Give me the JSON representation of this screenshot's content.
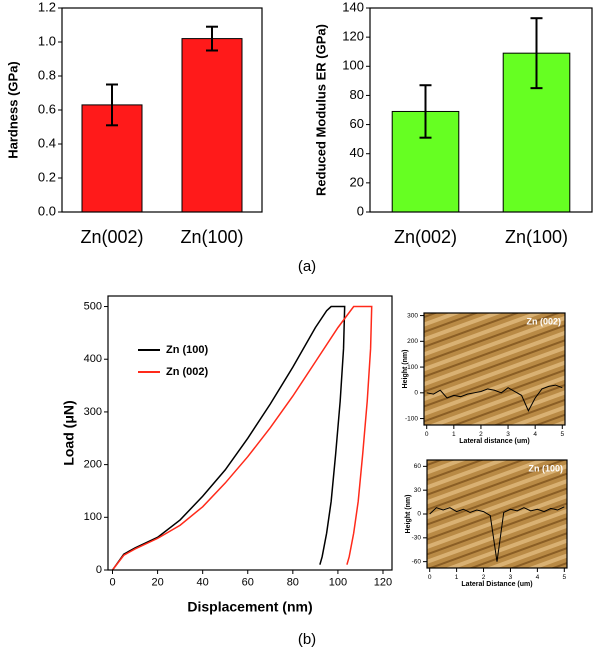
{
  "captions": [
    "(a)",
    "(b)"
  ],
  "chart_data": [
    {
      "type": "bar",
      "y_label": "Hardness (GPa)",
      "categories": [
        "Zn(002)",
        "Zn(100)"
      ],
      "values": [
        0.63,
        1.02
      ],
      "errors": [
        0.12,
        0.07
      ],
      "color": "#ff1a1a",
      "ylim": [
        0,
        1.2
      ],
      "yticks": [
        {
          "value": 0,
          "label": "0.0"
        },
        0.2,
        0.4,
        0.6,
        0.8,
        {
          "value": 1,
          "label": "1.0"
        },
        1.2
      ]
    },
    {
      "type": "bar",
      "y_label": "Reduced Modulus ER (GPa)",
      "categories": [
        "Zn(002)",
        "Zn(100)"
      ],
      "values": [
        69,
        109
      ],
      "errors": [
        18,
        24
      ],
      "color": "#66ff22",
      "ylim": [
        0,
        140
      ],
      "yticks": [
        0,
        20,
        40,
        60,
        80,
        100,
        120,
        140
      ]
    },
    {
      "type": "line",
      "x_label": "Displacement (nm)",
      "y_label": "Load (μN)",
      "legend": "upper left",
      "xlim": [
        -2,
        124
      ],
      "xticks": [
        0,
        20,
        40,
        60,
        80,
        100,
        120
      ],
      "ylim": [
        0,
        520
      ],
      "yticks": [
        0,
        100,
        200,
        300,
        400,
        500
      ],
      "series": [
        {
          "name": "Zn (100)",
          "color": "#000000",
          "x": [
            0,
            5,
            10,
            20,
            30,
            40,
            50,
            60,
            70,
            80,
            90,
            95,
            97,
            103,
            102.5,
            101,
            99,
            97,
            95,
            93,
            92
          ],
          "values": [
            0,
            30,
            42,
            62,
            95,
            140,
            190,
            250,
            315,
            385,
            460,
            492,
            500,
            500,
            420,
            320,
            220,
            130,
            70,
            25,
            10
          ]
        },
        {
          "name": "Zn (002)",
          "color": "#ff2a1a",
          "x": [
            0,
            5,
            10,
            20,
            30,
            40,
            50,
            60,
            70,
            80,
            90,
            100,
            107,
            115,
            114.5,
            113,
            111,
            109,
            107,
            105,
            104
          ],
          "values": [
            0,
            28,
            40,
            60,
            85,
            120,
            165,
            215,
            270,
            330,
            395,
            460,
            500,
            500,
            420,
            320,
            220,
            130,
            70,
            25,
            10
          ]
        }
      ]
    },
    {
      "type": "line",
      "title": "Zn (002)",
      "x_label": "Lateral distance (um)",
      "y_label": "Height (nm)",
      "xlim": [
        -0.1,
        5.1
      ],
      "xticks": [
        0,
        1,
        2,
        3,
        4,
        5
      ],
      "ylim": [
        -125,
        310
      ],
      "yticks": [
        -100,
        0,
        100,
        200,
        300
      ],
      "series": [
        {
          "color": "#000000",
          "x": [
            0,
            0.25,
            0.5,
            0.75,
            1,
            1.25,
            1.5,
            1.75,
            2,
            2.25,
            2.5,
            2.75,
            3,
            3.25,
            3.5,
            3.75,
            4,
            4.25,
            4.5,
            4.75,
            5
          ],
          "values": [
            0,
            -5,
            10,
            -20,
            -10,
            -15,
            -5,
            0,
            5,
            15,
            10,
            0,
            20,
            5,
            -10,
            -70,
            -20,
            15,
            25,
            30,
            20
          ]
        }
      ]
    },
    {
      "type": "line",
      "title": "Zn (100)",
      "x_label": "Lateral Distance (um)",
      "y_label": "Height (nm)",
      "xlim": [
        -0.1,
        5.1
      ],
      "xticks": [
        0,
        1,
        2,
        3,
        4,
        5
      ],
      "ylim": [
        -68,
        68
      ],
      "yticks": [
        -60,
        -30,
        0,
        30,
        60
      ],
      "series": [
        {
          "color": "#000000",
          "x": [
            0,
            0.25,
            0.5,
            0.75,
            1,
            1.25,
            1.5,
            1.75,
            2,
            2.25,
            2.5,
            2.75,
            3,
            3.25,
            3.5,
            3.75,
            4,
            4.25,
            4.5,
            4.75,
            5
          ],
          "values": [
            0,
            8,
            5,
            8,
            3,
            6,
            2,
            5,
            3,
            -2,
            -60,
            2,
            6,
            4,
            8,
            4,
            6,
            3,
            7,
            5,
            9
          ]
        }
      ]
    }
  ]
}
